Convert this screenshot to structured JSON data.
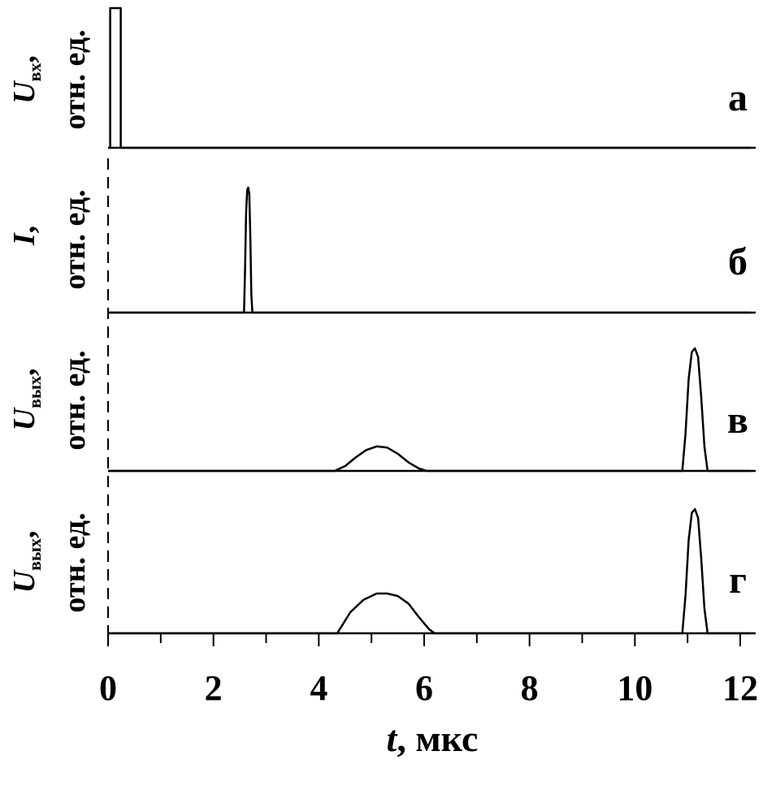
{
  "chart_data": {
    "type": "line",
    "xlabel_var": "t",
    "xlabel_unit": ", мкс",
    "xlim": [
      0,
      12.2
    ],
    "xticks": [
      "0",
      "2",
      "4",
      "6",
      "8",
      "10",
      "12"
    ],
    "panels": [
      {
        "id": "a",
        "letter": "а",
        "ylabel_var": "U",
        "ylabel_sub": "вх",
        "ylabel_sep": ",",
        "ylabel_line2": "отн. ед.",
        "ylim": [
          0,
          1
        ],
        "series": [
          {
            "x": [
              0.0,
              0.04,
              0.04,
              0.24,
              0.24,
              12.2
            ],
            "y": [
              0,
              0,
              1,
              1,
              0,
              0
            ]
          }
        ]
      },
      {
        "id": "b",
        "letter": "б",
        "ylabel_var": "I",
        "ylabel_sub": "",
        "ylabel_sep": ",",
        "ylabel_line2": "отн. ед.",
        "ylim": [
          0,
          1
        ],
        "series": [
          {
            "x": [
              0.0,
              2.58,
              2.6,
              2.62,
              2.64,
              2.66,
              2.68,
              2.7,
              2.72,
              2.74,
              12.2
            ],
            "y": [
              0,
              0,
              0.35,
              0.8,
              0.98,
              1.0,
              0.95,
              0.6,
              0.15,
              0,
              0
            ]
          }
        ]
      },
      {
        "id": "v",
        "letter": "в",
        "ylabel_var": "U",
        "ylabel_sub": "вых",
        "ylabel_sep": ",",
        "ylabel_line2": "отн. ед.",
        "ylim": [
          0,
          1
        ],
        "series": [
          {
            "x": [
              0.0,
              4.3,
              4.5,
              4.7,
              4.9,
              5.1,
              5.3,
              5.5,
              5.7,
              5.9,
              6.05,
              10.9,
              10.96,
              11.02,
              11.08,
              11.14,
              11.2,
              11.26,
              11.32,
              11.38,
              12.2
            ],
            "y": [
              0,
              0,
              0.04,
              0.11,
              0.17,
              0.2,
              0.19,
              0.14,
              0.07,
              0.02,
              0,
              0,
              0.3,
              0.75,
              0.97,
              1.0,
              0.93,
              0.6,
              0.2,
              0,
              0
            ]
          }
        ]
      },
      {
        "id": "g",
        "letter": "г",
        "ylabel_var": "U",
        "ylabel_sub": "вых",
        "ylabel_sep": ",",
        "ylabel_line2": "отн. ед.",
        "ylim": [
          0,
          1
        ],
        "series": [
          {
            "x": [
              0.0,
              4.35,
              4.6,
              4.85,
              5.1,
              5.3,
              5.5,
              5.7,
              5.9,
              6.1,
              6.2,
              10.9,
              10.96,
              11.02,
              11.08,
              11.14,
              11.2,
              11.26,
              11.32,
              11.38,
              12.2
            ],
            "y": [
              0,
              0,
              0.17,
              0.27,
              0.32,
              0.32,
              0.3,
              0.24,
              0.13,
              0.03,
              0,
              0,
              0.3,
              0.75,
              0.97,
              1.0,
              0.93,
              0.6,
              0.2,
              0,
              0
            ]
          }
        ]
      }
    ]
  }
}
